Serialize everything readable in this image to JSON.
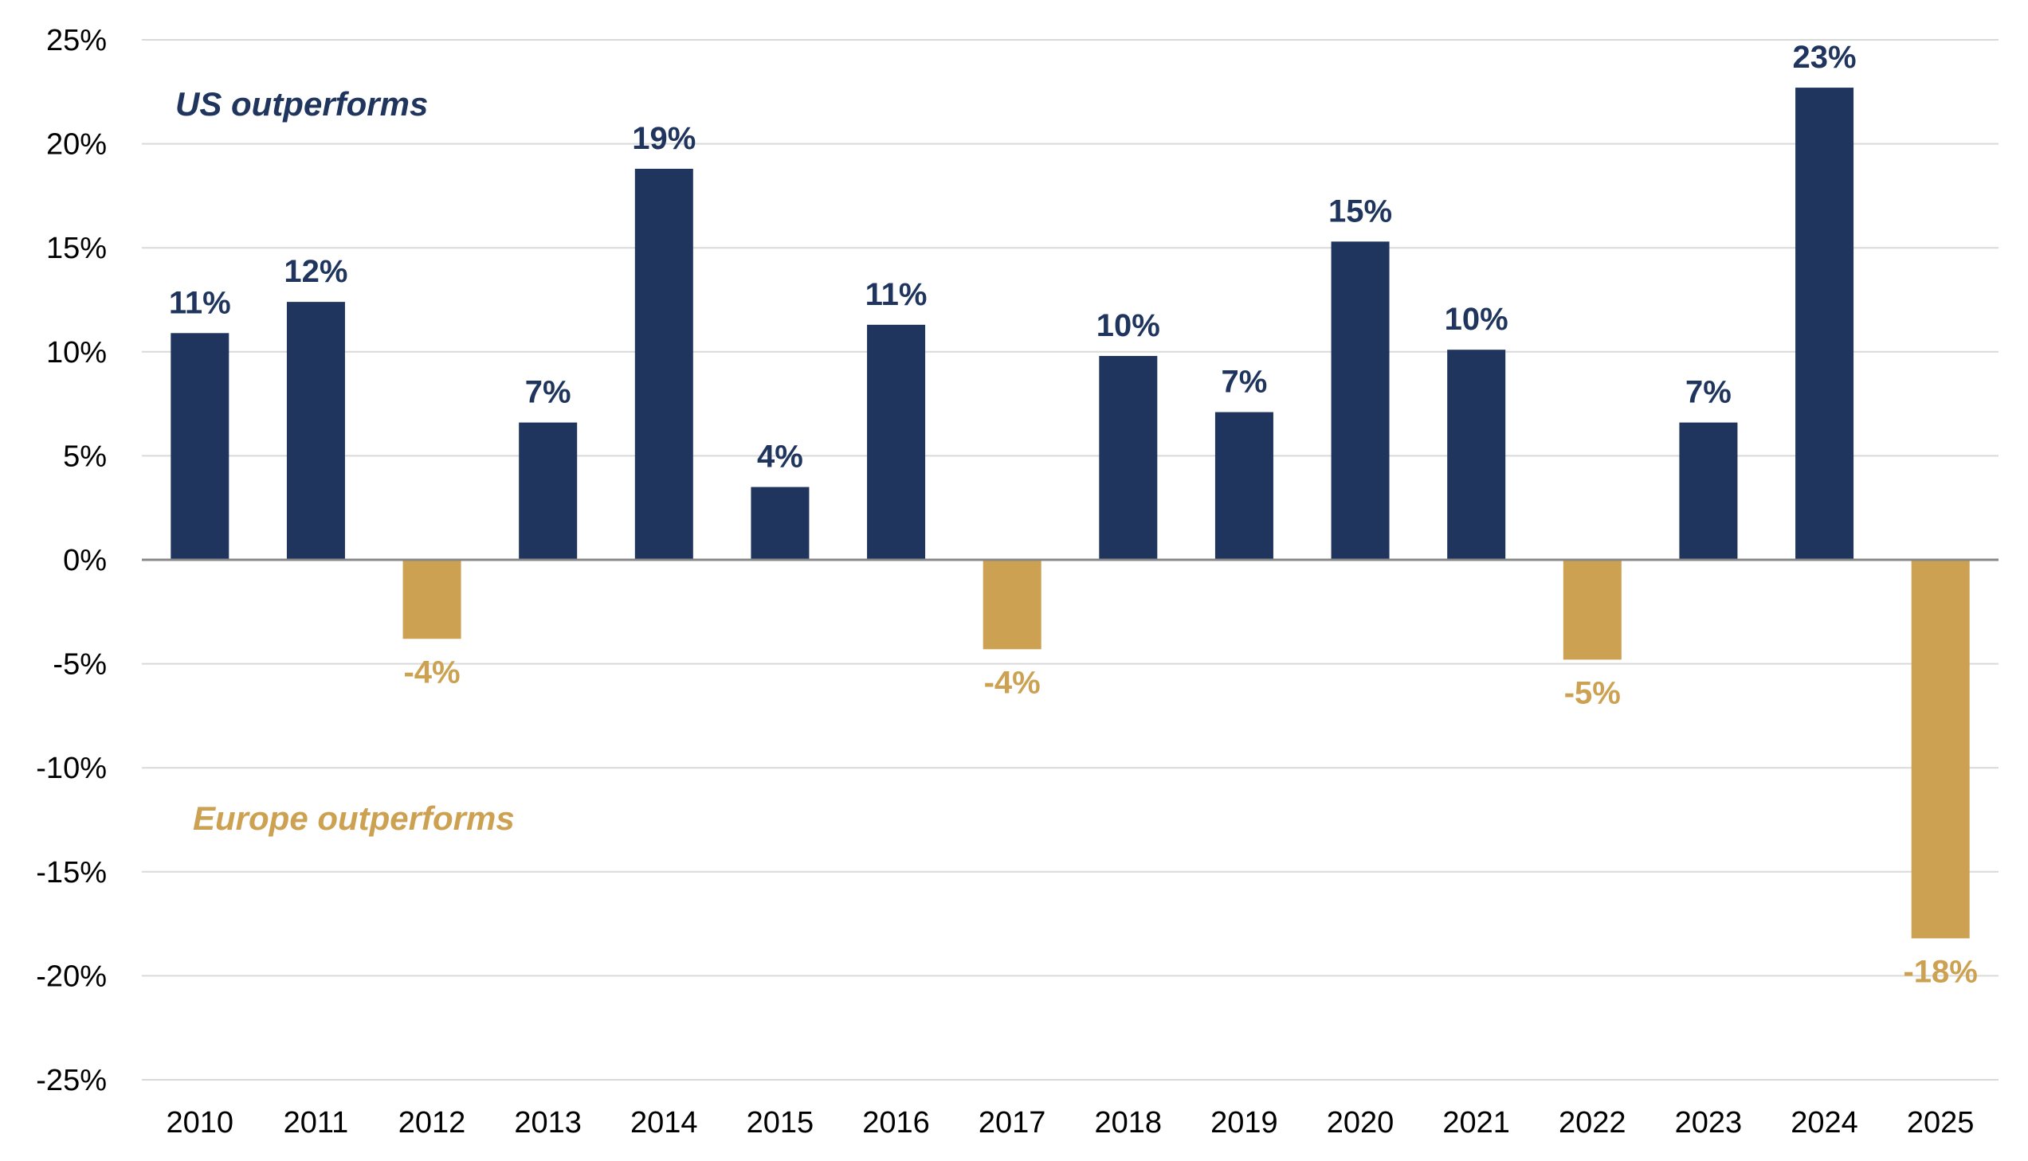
{
  "chart_data": {
    "type": "bar",
    "title": "",
    "xlabel": "",
    "ylabel": "",
    "categories": [
      "2010",
      "2011",
      "2012",
      "2013",
      "2014",
      "2015",
      "2016",
      "2017",
      "2018",
      "2019",
      "2020",
      "2021",
      "2022",
      "2023",
      "2024",
      "2025"
    ],
    "values": [
      10.9,
      12.4,
      -3.8,
      6.6,
      18.8,
      3.5,
      11.3,
      -4.3,
      9.8,
      7.1,
      15.3,
      10.1,
      -4.8,
      6.6,
      22.7,
      -18.2
    ],
    "data_labels": [
      "11%",
      "12%",
      "-4%",
      "7%",
      "19%",
      "4%",
      "11%",
      "-4%",
      "10%",
      "7%",
      "15%",
      "10%",
      "-5%",
      "7%",
      "23%",
      "-18%"
    ],
    "ylim": [
      -25,
      25
    ],
    "yticks": [
      25,
      20,
      15,
      10,
      5,
      0,
      -5,
      -10,
      -15,
      -20,
      -25
    ],
    "ytick_labels": [
      "25%",
      "20%",
      "15%",
      "10%",
      "5%",
      "0%",
      "-5%",
      "-10%",
      "-15%",
      "-20%",
      "-25%"
    ],
    "grid": true,
    "legend": "none",
    "colors": {
      "positive": "#1f355e",
      "negative": "#cca152",
      "grid": "#d9d9d9",
      "axis": "#888888"
    },
    "annotations": [
      {
        "text": "US outperforms",
        "color": "#1f355e"
      },
      {
        "text": "Europe outperforms",
        "color": "#cca152"
      }
    ]
  }
}
